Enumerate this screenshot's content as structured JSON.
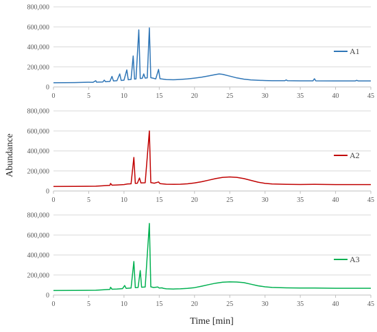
{
  "chart_data": [
    {
      "type": "line",
      "series": [
        {
          "name": "A1",
          "color": "#2E75B6",
          "points": [
            [
              0,
              42000
            ],
            [
              3,
              44000
            ],
            [
              5,
              47000
            ],
            [
              5.6,
              46000
            ],
            [
              6,
              62000
            ],
            [
              6.1,
              48000
            ],
            [
              7,
              50000
            ],
            [
              7.2,
              68000
            ],
            [
              7.4,
              52000
            ],
            [
              8,
              55000
            ],
            [
              8.3,
              105000
            ],
            [
              8.5,
              60000
            ],
            [
              9,
              62000
            ],
            [
              9.4,
              130000
            ],
            [
              9.6,
              65000
            ],
            [
              10,
              68000
            ],
            [
              10.4,
              170000
            ],
            [
              10.6,
              72000
            ],
            [
              11,
              75000
            ],
            [
              11.3,
              310000
            ],
            [
              11.5,
              78000
            ],
            [
              11.7,
              80000
            ],
            [
              12.1,
              570000
            ],
            [
              12.3,
              85000
            ],
            [
              12.6,
              86000
            ],
            [
              12.8,
              130000
            ],
            [
              13.0,
              88000
            ],
            [
              13.3,
              90000
            ],
            [
              13.6,
              590000
            ],
            [
              13.8,
              92000
            ],
            [
              14.2,
              86000
            ],
            [
              14.5,
              80000
            ],
            [
              14.9,
              175000
            ],
            [
              15.1,
              82000
            ],
            [
              16,
              74000
            ],
            [
              17,
              72000
            ],
            [
              18,
              75000
            ],
            [
              19,
              80000
            ],
            [
              20,
              88000
            ],
            [
              21,
              98000
            ],
            [
              22,
              110000
            ],
            [
              23,
              124000
            ],
            [
              23.5,
              130000
            ],
            [
              24,
              126000
            ],
            [
              25,
              108000
            ],
            [
              26,
              90000
            ],
            [
              27,
              78000
            ],
            [
              28,
              70000
            ],
            [
              29,
              66000
            ],
            [
              30,
              64000
            ],
            [
              31,
              62000
            ],
            [
              32.8,
              62000
            ],
            [
              33,
              70000
            ],
            [
              33.2,
              62000
            ],
            [
              35,
              61000
            ],
            [
              36.8,
              61000
            ],
            [
              37,
              82000
            ],
            [
              37.2,
              61000
            ],
            [
              40,
              60000
            ],
            [
              42.8,
              60000
            ],
            [
              43,
              66000
            ],
            [
              43.2,
              60000
            ],
            [
              45,
              60000
            ]
          ]
        }
      ],
      "xlim": [
        0,
        45
      ],
      "ylim": [
        0,
        800000
      ],
      "xticks": [
        "0",
        "5",
        "10",
        "15",
        "20",
        "25",
        "30",
        "35",
        "40",
        "45"
      ],
      "yticks": [
        "0",
        "200,000",
        "400,000",
        "600,000",
        "800,000"
      ],
      "grid": "horizontal",
      "legend": "right"
    },
    {
      "type": "line",
      "series": [
        {
          "name": "A2",
          "color": "#C00000",
          "points": [
            [
              0,
              45000
            ],
            [
              3,
              46000
            ],
            [
              6,
              48000
            ],
            [
              7,
              52000
            ],
            [
              8,
              56000
            ],
            [
              8.1,
              75000
            ],
            [
              8.3,
              58000
            ],
            [
              9,
              60000
            ],
            [
              10,
              64000
            ],
            [
              10.5,
              70000
            ],
            [
              11,
              72000
            ],
            [
              11.4,
              335000
            ],
            [
              11.6,
              76000
            ],
            [
              11.9,
              78000
            ],
            [
              12.2,
              130000
            ],
            [
              12.4,
              80000
            ],
            [
              13.0,
              82000
            ],
            [
              13.6,
              600000
            ],
            [
              13.8,
              84000
            ],
            [
              14.3,
              78000
            ],
            [
              14.9,
              90000
            ],
            [
              15.1,
              74000
            ],
            [
              16,
              68000
            ],
            [
              17,
              66000
            ],
            [
              18,
              68000
            ],
            [
              19,
              72000
            ],
            [
              20,
              80000
            ],
            [
              21,
              92000
            ],
            [
              22,
              108000
            ],
            [
              23,
              124000
            ],
            [
              24,
              136000
            ],
            [
              25,
              140000
            ],
            [
              26,
              136000
            ],
            [
              27,
              124000
            ],
            [
              28,
              106000
            ],
            [
              29,
              88000
            ],
            [
              30,
              76000
            ],
            [
              31,
              70000
            ],
            [
              33,
              66000
            ],
            [
              35,
              65000
            ],
            [
              37,
              66000
            ],
            [
              40,
              64000
            ],
            [
              43,
              64000
            ],
            [
              45,
              64000
            ]
          ]
        }
      ],
      "xlim": [
        0,
        45
      ],
      "ylim": [
        0,
        800000
      ],
      "xticks": [
        "0",
        "5",
        "10",
        "15",
        "20",
        "25",
        "30",
        "35",
        "40",
        "45"
      ],
      "yticks": [
        "0",
        "200,000",
        "400,000",
        "600,000",
        "800,000"
      ],
      "grid": "horizontal",
      "legend": "right"
    },
    {
      "type": "line",
      "series": [
        {
          "name": "A3",
          "color": "#00B050",
          "points": [
            [
              0,
              45000
            ],
            [
              3,
              46000
            ],
            [
              6,
              48000
            ],
            [
              7,
              52000
            ],
            [
              8,
              56000
            ],
            [
              8.1,
              78000
            ],
            [
              8.3,
              58000
            ],
            [
              9,
              60000
            ],
            [
              9.8,
              64000
            ],
            [
              10.1,
              95000
            ],
            [
              10.3,
              66000
            ],
            [
              11,
              70000
            ],
            [
              11.4,
              335000
            ],
            [
              11.6,
              74000
            ],
            [
              12.0,
              76000
            ],
            [
              12.3,
              245000
            ],
            [
              12.5,
              78000
            ],
            [
              13.0,
              80000
            ],
            [
              13.6,
              715000
            ],
            [
              13.8,
              82000
            ],
            [
              14.2,
              75000
            ],
            [
              14.8,
              80000
            ],
            [
              15.0,
              70000
            ],
            [
              15.4,
              72000
            ],
            [
              15.6,
              66000
            ],
            [
              16,
              62000
            ],
            [
              17,
              60000
            ],
            [
              18,
              62000
            ],
            [
              19,
              66000
            ],
            [
              20,
              74000
            ],
            [
              21,
              88000
            ],
            [
              22,
              104000
            ],
            [
              23,
              118000
            ],
            [
              24,
              128000
            ],
            [
              25,
              132000
            ],
            [
              26,
              130000
            ],
            [
              27,
              124000
            ],
            [
              28,
              108000
            ],
            [
              29,
              92000
            ],
            [
              30,
              82000
            ],
            [
              31,
              76000
            ],
            [
              33,
              72000
            ],
            [
              35,
              70000
            ],
            [
              37,
              70000
            ],
            [
              40,
              68000
            ],
            [
              43,
              68000
            ],
            [
              45,
              68000
            ]
          ]
        }
      ],
      "xlim": [
        0,
        45
      ],
      "ylim": [
        0,
        800000
      ],
      "xticks": [
        "0",
        "5",
        "10",
        "15",
        "20",
        "25",
        "30",
        "35",
        "40",
        "45"
      ],
      "yticks": [
        "0",
        "200,000",
        "400,000",
        "600,000",
        "800,000"
      ],
      "grid": "horizontal",
      "legend": "right"
    }
  ],
  "axes": {
    "ylabel": "Abundance",
    "xlabel": "Time [min]"
  },
  "colors": {
    "axis": "#BFBFBF",
    "grid": "#D9D9D9",
    "tick_text": "#595959"
  }
}
